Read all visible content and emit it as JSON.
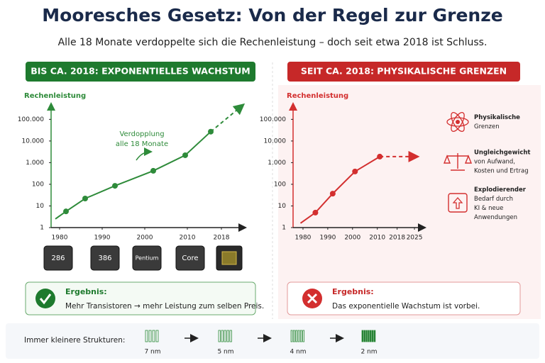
{
  "title": "Mooresches Gesetz: Von der Regel zur Grenze",
  "subtitle": "Alle 18 Monate verdoppelte sich die Rechenleistung – doch seit etwa 2018 ist Schluss.",
  "left_header": "BIS CA. 2018: EXPONENTIELLES WACHSTUM",
  "right_header": "SEIT CA. 2018: PHYSIKALISCHE GRENZEN",
  "chart_data": [
    {
      "type": "line",
      "y_label": "Rechenleistung",
      "annotation": [
        "Verdopplung",
        "alle 18 Monate"
      ],
      "yscale": "log",
      "ylim": [
        1,
        500000
      ],
      "yticks": [
        1,
        10,
        100,
        {
          "value": 1000,
          "label": "1.000"
        },
        {
          "value": 10000,
          "label": "10.000"
        },
        {
          "value": 100000,
          "label": "100.000"
        }
      ],
      "xlim": [
        1978,
        2023.5
      ],
      "xticks": [
        1980,
        1990,
        2000,
        2010,
        2018
      ],
      "series": [
        {
          "color": "#2e8b3a",
          "x": [
            1979,
            1981.5,
            1986,
            1993,
            2002,
            2009.5,
            2015.5
          ],
          "values": [
            2.5,
            5.6,
            22,
            85,
            420,
            2200,
            27000
          ],
          "markers": [
            false,
            true,
            true,
            true,
            true,
            true,
            true
          ]
        }
      ],
      "trend": {
        "x": [
          2015.5,
          2023
        ],
        "values": [
          27000,
          450000
        ],
        "dashed": true
      }
    },
    {
      "type": "line",
      "y_label": "Rechenleistung",
      "yscale": "log",
      "ylim": [
        1,
        500000
      ],
      "yticks": [
        1,
        10,
        100,
        {
          "value": 1000,
          "label": "1.000"
        },
        {
          "value": 10000,
          "label": "10.000"
        },
        {
          "value": 100000,
          "label": "100.000"
        }
      ],
      "xlim": [
        1976,
        2029
      ],
      "xticks": [
        1980,
        1990,
        2000,
        2010,
        2018,
        2025
      ],
      "series": [
        {
          "color": "#d32f2f",
          "x": [
            1979,
            1985,
            1992,
            2001,
            2011
          ],
          "values": [
            1.6,
            4.9,
            37,
            390,
            1900
          ],
          "markers": [
            false,
            true,
            true,
            true,
            true
          ]
        }
      ],
      "trend": {
        "x": [
          2011,
          2026
        ],
        "values": [
          1900,
          1900
        ],
        "dashed": true
      }
    }
  ],
  "chips": [
    "286",
    "386",
    "Pentium",
    "Core"
  ],
  "limits": [
    [
      "Physikalische",
      "Grenzen"
    ],
    [
      "Ungleichgewicht",
      "von Aufwand,",
      "Kosten und Ertrag"
    ],
    [
      "Explodierender",
      "Bedarf durch",
      "KI & neue",
      "Anwendungen"
    ]
  ],
  "result_left": {
    "heading": "Ergebnis:",
    "text": "Mehr Transistoren → mehr Leistung zum selben Preis."
  },
  "result_right": {
    "heading": "Ergebnis:",
    "text": "Das exponentielle Wachstum ist vorbei."
  },
  "structures": {
    "label": "Immer kleinere Strukturen:",
    "nodes": [
      "7 nm",
      "5 nm",
      "4 nm",
      "2 nm"
    ]
  }
}
